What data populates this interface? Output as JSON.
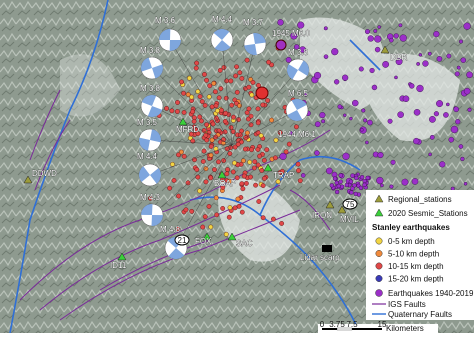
{
  "map": {
    "mechanisms": [
      {
        "label": "M 3.6"
      },
      {
        "label": "M 4.4"
      },
      {
        "label": "M 3.7"
      },
      {
        "label": "M 3.8"
      },
      {
        "label": "M 3.8"
      },
      {
        "label": "M 3.8"
      },
      {
        "label": "M 6.5"
      },
      {
        "label": "M 3.5"
      },
      {
        "label": "M 4.4"
      },
      {
        "label": "M 4.3"
      },
      {
        "label": "M 4.8"
      }
    ],
    "historic": [
      {
        "label": "1945 M6.0"
      },
      {
        "label": "1944 M6.1"
      }
    ],
    "regional_stations": [
      {
        "label": "DDR"
      },
      {
        "label": "DDWD"
      },
      {
        "label": "IRON"
      },
      {
        "label": "MVIL"
      }
    ],
    "seismic_stations": [
      {
        "label": "MFRD"
      },
      {
        "label": "BOAP"
      },
      {
        "label": "TRAP"
      },
      {
        "label": "FOX"
      },
      {
        "label": "SAC"
      },
      {
        "label": "ID11"
      }
    ],
    "highways": [
      {
        "label": "21"
      },
      {
        "label": "75"
      }
    ],
    "feature": {
      "label": "Lidar scarp"
    }
  },
  "legend": {
    "items": [
      {
        "label": "Regional_stations"
      },
      {
        "label": "2020 Sesmic_Stations"
      }
    ],
    "heading": "Stanley earthquakes",
    "depths": [
      {
        "label": "0-5 km depth",
        "color": "#f2d544"
      },
      {
        "label": "5-10 km depth",
        "color": "#f08a3c"
      },
      {
        "label": "10-15 km depth",
        "color": "#e04848"
      },
      {
        "label": "15-20 km depth",
        "color": "#3a3ab8"
      }
    ],
    "others": [
      {
        "label": "Earthquakes 1940-2019"
      },
      {
        "label": "IGS Faults"
      },
      {
        "label": "Quaternary Faults"
      }
    ]
  },
  "scale": {
    "ticks": [
      "0",
      "3.75",
      "7.5",
      "15"
    ],
    "unit": "Kilometers"
  }
}
